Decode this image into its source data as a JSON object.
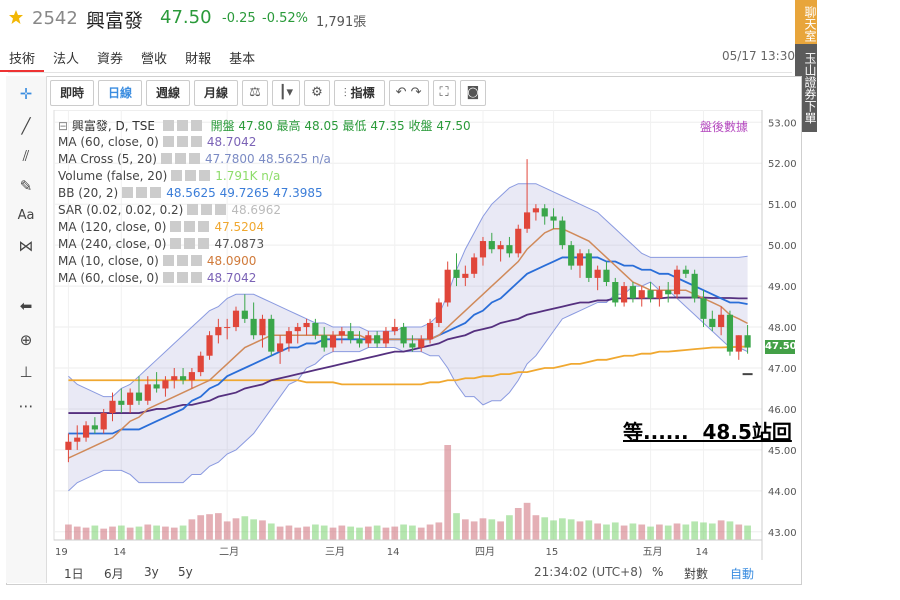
{
  "header": {
    "code": "2542",
    "name": "興富發",
    "price": "47.50",
    "change": "-0.25",
    "change_pct": "-0.52%",
    "volume": "1,791張",
    "timestamp": "05/17 13:30",
    "colors": {
      "down": "#2a9a3a",
      "star": "#f2b705"
    }
  },
  "tabs": [
    "技術",
    "法人",
    "資券",
    "營收",
    "財報",
    "基本"
  ],
  "side_buttons": [
    "聊天室",
    "玉山證券下單"
  ],
  "toolbar": {
    "buttons": [
      "即時",
      "日線",
      "週線",
      "月線"
    ],
    "indicator_label": "指標"
  },
  "legend": {
    "title": "興富發, D, TSE",
    "ohlc": "開盤 47.80 最高 48.05 最低 47.35 收盤 47.50",
    "after_hours": "盤後數據",
    "rows": [
      {
        "label": "MA (60, close, 0)",
        "values": "48.7042",
        "color": "#7b63b6"
      },
      {
        "label": "MA Cross (5, 20)",
        "values": "47.7800 48.5625 n/a",
        "color": "#7b8bc4"
      },
      {
        "label": "Volume (false, 20)",
        "values": "1.791K n/a",
        "color": "#8ddc6a"
      },
      {
        "label": "BB (20, 2)",
        "values": "48.5625 49.7265 47.3985",
        "color": "#3b7dd8"
      },
      {
        "label": "SAR (0.02, 0.02, 0.2)",
        "values": "48.6962",
        "color": "#bbbbbb"
      },
      {
        "label": "MA (120, close, 0)",
        "values": "47.5204",
        "color": "#f0a830"
      },
      {
        "label": "MA (240, close, 0)",
        "values": "47.0873",
        "color": "#555555"
      },
      {
        "label": "MA (10, close, 0)",
        "values": "48.0900",
        "color": "#d07a3a"
      },
      {
        "label": "MA (60, close, 0)",
        "values": "48.7042",
        "color": "#7b63b6"
      }
    ]
  },
  "annotation": "等......  48.5站回",
  "price_tag": "47.50",
  "bottom_bar": {
    "ranges": [
      "1日",
      "6月",
      "3y",
      "5y"
    ],
    "clock": "21:34:02 (UTC+8)",
    "percent": "%",
    "log": "對數",
    "auto": "自動"
  },
  "chart_data": {
    "type": "candlestick",
    "ylim": [
      42.8,
      53.3
    ],
    "y_ticks": [
      43,
      44,
      45,
      46,
      47,
      48,
      49,
      50,
      51,
      52,
      53
    ],
    "x_ticks": [
      "19",
      "14",
      "二月",
      "三月",
      "14",
      "四月",
      "15",
      "五月",
      "14"
    ],
    "grid": true,
    "candles": [
      [
        45.0,
        45.4,
        44.7,
        45.2
      ],
      [
        45.2,
        45.6,
        45.0,
        45.3
      ],
      [
        45.3,
        45.7,
        45.2,
        45.6
      ],
      [
        45.6,
        45.8,
        45.4,
        45.5
      ],
      [
        45.5,
        46.0,
        45.4,
        45.9
      ],
      [
        45.9,
        46.4,
        45.7,
        46.2
      ],
      [
        46.2,
        46.5,
        45.9,
        46.1
      ],
      [
        46.1,
        46.5,
        45.9,
        46.4
      ],
      [
        46.4,
        46.8,
        46.1,
        46.2
      ],
      [
        46.2,
        46.8,
        46.1,
        46.6
      ],
      [
        46.6,
        46.9,
        46.4,
        46.5
      ],
      [
        46.5,
        46.8,
        46.3,
        46.7
      ],
      [
        46.7,
        47.0,
        46.5,
        46.8
      ],
      [
        46.8,
        47.0,
        46.6,
        46.7
      ],
      [
        46.7,
        47.0,
        46.5,
        46.9
      ],
      [
        46.9,
        47.4,
        46.8,
        47.3
      ],
      [
        47.3,
        47.9,
        47.2,
        47.8
      ],
      [
        47.8,
        48.2,
        47.6,
        48.0
      ],
      [
        48.0,
        48.2,
        47.7,
        48.0
      ],
      [
        48.0,
        48.5,
        47.9,
        48.4
      ],
      [
        48.4,
        48.8,
        48.1,
        48.2
      ],
      [
        48.2,
        48.6,
        47.7,
        47.8
      ],
      [
        47.8,
        48.3,
        47.5,
        48.2
      ],
      [
        48.2,
        48.3,
        47.3,
        47.4
      ],
      [
        47.4,
        47.8,
        47.1,
        47.6
      ],
      [
        47.6,
        48.0,
        47.4,
        47.9
      ],
      [
        47.9,
        48.1,
        47.6,
        48.0
      ],
      [
        48.0,
        48.2,
        47.8,
        48.1
      ],
      [
        48.1,
        48.2,
        47.7,
        47.8
      ],
      [
        47.8,
        48.0,
        47.4,
        47.5
      ],
      [
        47.5,
        47.9,
        47.4,
        47.8
      ],
      [
        47.8,
        48.0,
        47.6,
        47.9
      ],
      [
        47.9,
        48.1,
        47.6,
        47.7
      ],
      [
        47.7,
        47.9,
        47.5,
        47.6
      ],
      [
        47.6,
        47.9,
        47.5,
        47.8
      ],
      [
        47.8,
        47.9,
        47.5,
        47.6
      ],
      [
        47.6,
        48.0,
        47.5,
        47.9
      ],
      [
        47.9,
        48.2,
        47.8,
        48.0
      ],
      [
        48.0,
        48.1,
        47.5,
        47.6
      ],
      [
        47.6,
        47.8,
        47.4,
        47.5
      ],
      [
        47.5,
        47.8,
        47.4,
        47.7
      ],
      [
        47.7,
        48.2,
        47.6,
        48.1
      ],
      [
        48.1,
        48.7,
        48.0,
        48.6
      ],
      [
        48.6,
        49.6,
        48.5,
        49.4
      ],
      [
        49.4,
        49.8,
        49.0,
        49.2
      ],
      [
        49.2,
        49.5,
        49.0,
        49.3
      ],
      [
        49.3,
        49.8,
        49.2,
        49.7
      ],
      [
        49.7,
        50.2,
        49.5,
        50.1
      ],
      [
        50.1,
        50.3,
        49.8,
        49.9
      ],
      [
        49.9,
        50.1,
        49.6,
        50.0
      ],
      [
        50.0,
        50.2,
        49.7,
        49.8
      ],
      [
        49.8,
        50.5,
        49.7,
        50.4
      ],
      [
        50.4,
        52.1,
        50.3,
        50.8
      ],
      [
        50.8,
        51.0,
        50.6,
        50.9
      ],
      [
        50.9,
        51.0,
        50.5,
        50.7
      ],
      [
        50.7,
        50.9,
        50.4,
        50.6
      ],
      [
        50.6,
        50.7,
        49.9,
        50.0
      ],
      [
        50.0,
        50.1,
        49.4,
        49.5
      ],
      [
        49.5,
        49.9,
        49.2,
        49.8
      ],
      [
        49.8,
        49.9,
        49.1,
        49.2
      ],
      [
        49.2,
        49.5,
        48.9,
        49.4
      ],
      [
        49.4,
        49.6,
        49.0,
        49.1
      ],
      [
        49.1,
        49.2,
        48.5,
        48.6
      ],
      [
        48.6,
        49.1,
        48.5,
        49.0
      ],
      [
        49.0,
        49.1,
        48.6,
        48.7
      ],
      [
        48.7,
        49.0,
        48.5,
        48.9
      ],
      [
        48.9,
        49.1,
        48.6,
        48.7
      ],
      [
        48.7,
        49.0,
        48.5,
        48.9
      ],
      [
        48.9,
        49.1,
        48.6,
        48.8
      ],
      [
        48.8,
        49.5,
        48.7,
        49.4
      ],
      [
        49.4,
        49.5,
        49.2,
        49.3
      ],
      [
        49.3,
        49.4,
        48.6,
        48.7
      ],
      [
        48.7,
        48.9,
        48.0,
        48.2
      ],
      [
        48.2,
        48.4,
        47.9,
        48.0
      ],
      [
        48.0,
        48.5,
        47.8,
        48.3
      ],
      [
        48.3,
        48.4,
        47.3,
        47.4
      ],
      [
        47.4,
        47.8,
        47.2,
        47.8
      ],
      [
        47.8,
        48.05,
        47.35,
        47.5
      ]
    ],
    "volume": [
      1.5,
      1.3,
      1.2,
      1.4,
      1.1,
      1.3,
      1.4,
      1.2,
      1.3,
      1.5,
      1.4,
      1.3,
      1.2,
      1.4,
      2.0,
      2.4,
      2.5,
      2.6,
      1.8,
      2.1,
      2.3,
      2.0,
      1.9,
      1.6,
      1.3,
      1.4,
      1.2,
      1.3,
      1.5,
      1.4,
      1.2,
      1.4,
      1.3,
      1.2,
      1.3,
      1.4,
      1.2,
      1.3,
      1.5,
      1.4,
      1.2,
      1.5,
      1.7,
      9.2,
      2.6,
      2.0,
      1.8,
      2.1,
      2.0,
      1.8,
      2.4,
      3.1,
      3.6,
      2.4,
      2.2,
      1.9,
      2.1,
      2.0,
      1.8,
      1.9,
      1.6,
      1.5,
      1.7,
      1.4,
      1.6,
      1.5,
      1.3,
      1.5,
      1.4,
      1.6,
      1.5,
      1.8,
      1.7,
      1.6,
      1.9,
      1.8,
      1.5,
      1.4
    ],
    "ma10": [
      44.8,
      44.9,
      45.0,
      45.1,
      45.2,
      45.3,
      45.5,
      45.7,
      45.8,
      46.0,
      46.1,
      46.2,
      46.3,
      46.4,
      46.5,
      46.6,
      46.7,
      46.9,
      47.1,
      47.3,
      47.5,
      47.6,
      47.7,
      47.8,
      47.8,
      47.8,
      47.8,
      47.8,
      47.8,
      47.8,
      47.8,
      47.8,
      47.8,
      47.8,
      47.7,
      47.7,
      47.7,
      47.7,
      47.7,
      47.7,
      47.7,
      47.7,
      47.8,
      48.0,
      48.2,
      48.4,
      48.6,
      48.8,
      49.0,
      49.2,
      49.4,
      49.6,
      49.9,
      50.1,
      50.3,
      50.4,
      50.4,
      50.3,
      50.2,
      50.1,
      49.9,
      49.7,
      49.5,
      49.3,
      49.1,
      49.0,
      48.9,
      48.9,
      48.9,
      48.9,
      48.9,
      48.8,
      48.7,
      48.6,
      48.5,
      48.3,
      48.2,
      48.09
    ],
    "ma20": [
      45.4,
      45.4,
      45.4,
      45.4,
      45.4,
      45.4,
      45.5,
      45.5,
      45.5,
      45.6,
      45.7,
      45.8,
      45.9,
      46.0,
      46.2,
      46.3,
      46.5,
      46.6,
      46.8,
      46.9,
      47.0,
      47.1,
      47.2,
      47.3,
      47.4,
      47.5,
      47.5,
      47.6,
      47.6,
      47.7,
      47.7,
      47.7,
      47.7,
      47.7,
      47.7,
      47.7,
      47.7,
      47.7,
      47.7,
      47.7,
      47.7,
      47.7,
      47.8,
      47.9,
      48.0,
      48.1,
      48.3,
      48.4,
      48.6,
      48.7,
      48.9,
      49.1,
      49.3,
      49.4,
      49.5,
      49.6,
      49.7,
      49.7,
      49.7,
      49.7,
      49.7,
      49.6,
      49.6,
      49.5,
      49.5,
      49.4,
      49.4,
      49.3,
      49.3,
      49.2,
      49.1,
      49.0,
      48.9,
      48.8,
      48.7,
      48.6,
      48.6,
      48.56
    ],
    "bb_upper": [
      46.8,
      46.6,
      46.5,
      46.4,
      46.3,
      46.3,
      46.5,
      46.6,
      46.8,
      47.0,
      47.2,
      47.4,
      47.6,
      47.8,
      48.0,
      48.2,
      48.4,
      48.5,
      48.7,
      48.8,
      48.8,
      48.8,
      48.7,
      48.6,
      48.5,
      48.4,
      48.3,
      48.2,
      48.1,
      48.1,
      48.0,
      48.0,
      48.0,
      48.0,
      47.9,
      47.9,
      47.9,
      47.9,
      48.0,
      48.0,
      48.0,
      48.1,
      48.3,
      48.8,
      49.4,
      49.9,
      50.3,
      50.7,
      51.0,
      51.2,
      51.4,
      51.5,
      51.5,
      51.5,
      51.4,
      51.3,
      51.2,
      51.1,
      51.0,
      50.9,
      50.8,
      50.6,
      50.4,
      50.2,
      50.0,
      49.8,
      49.7,
      49.7,
      49.7,
      49.7,
      49.7,
      49.7,
      49.7,
      49.7,
      49.7,
      49.7,
      49.7,
      49.73
    ],
    "bb_lower": [
      44.0,
      44.2,
      44.3,
      44.4,
      44.5,
      44.5,
      44.5,
      44.4,
      44.2,
      44.2,
      44.2,
      44.2,
      44.2,
      44.2,
      44.4,
      44.4,
      44.6,
      44.7,
      44.9,
      45.0,
      45.2,
      45.4,
      45.7,
      46.0,
      46.3,
      46.6,
      46.7,
      47.0,
      47.1,
      47.3,
      47.4,
      47.4,
      47.4,
      47.4,
      47.5,
      47.5,
      47.5,
      47.5,
      47.4,
      47.4,
      47.4,
      47.3,
      47.3,
      47.0,
      46.6,
      46.3,
      46.3,
      46.1,
      46.2,
      46.2,
      46.4,
      46.7,
      47.1,
      47.3,
      47.6,
      47.9,
      48.2,
      48.3,
      48.4,
      48.5,
      48.6,
      48.6,
      48.8,
      48.8,
      49.0,
      49.0,
      49.1,
      48.9,
      48.9,
      48.7,
      48.5,
      48.3,
      48.1,
      47.9,
      47.7,
      47.5,
      47.5,
      47.4
    ],
    "ma60": [
      45.9,
      45.9,
      45.9,
      45.9,
      45.9,
      45.9,
      45.9,
      45.9,
      45.9,
      45.95,
      46.0,
      46.0,
      46.05,
      46.1,
      46.1,
      46.15,
      46.2,
      46.3,
      46.35,
      46.4,
      46.5,
      46.55,
      46.6,
      46.7,
      46.75,
      46.8,
      46.85,
      46.9,
      46.95,
      47.0,
      47.05,
      47.1,
      47.15,
      47.2,
      47.25,
      47.3,
      47.35,
      47.4,
      47.4,
      47.45,
      47.5,
      47.55,
      47.6,
      47.7,
      47.75,
      47.8,
      47.9,
      47.95,
      48.0,
      48.1,
      48.15,
      48.2,
      48.3,
      48.35,
      48.4,
      48.45,
      48.5,
      48.55,
      48.6,
      48.6,
      48.65,
      48.65,
      48.7,
      48.7,
      48.7,
      48.7,
      48.7,
      48.7,
      48.72,
      48.72,
      48.72,
      48.72,
      48.72,
      48.71,
      48.71,
      48.71,
      48.7,
      48.7
    ],
    "ma120": [
      46.7,
      46.7,
      46.7,
      46.7,
      46.7,
      46.7,
      46.7,
      46.7,
      46.7,
      46.7,
      46.7,
      46.7,
      46.7,
      46.7,
      46.7,
      46.7,
      46.7,
      46.7,
      46.7,
      46.7,
      46.7,
      46.7,
      46.7,
      46.7,
      46.7,
      46.7,
      46.7,
      46.65,
      46.65,
      46.65,
      46.65,
      46.6,
      46.6,
      46.6,
      46.6,
      46.6,
      46.6,
      46.6,
      46.6,
      46.6,
      46.6,
      46.65,
      46.65,
      46.7,
      46.7,
      46.75,
      46.75,
      46.8,
      46.8,
      46.85,
      46.85,
      46.9,
      46.9,
      46.95,
      47.0,
      47.0,
      47.05,
      47.1,
      47.1,
      47.15,
      47.2,
      47.2,
      47.25,
      47.3,
      47.3,
      47.35,
      47.35,
      47.4,
      47.4,
      47.42,
      47.44,
      47.46,
      47.48,
      47.5,
      47.5,
      47.51,
      47.52,
      47.52
    ]
  }
}
